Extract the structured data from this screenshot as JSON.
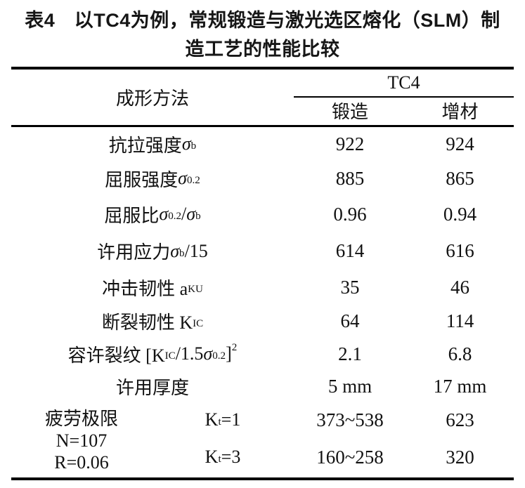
{
  "colors": {
    "background": "#ffffff",
    "text": "#111111",
    "rule": "#000000"
  },
  "title": {
    "line1": "表4　以TC4为例，常规锻造与激光选区熔化（SLM）制",
    "line2": "造工艺的性能比较"
  },
  "table": {
    "header": {
      "method_label": "成形方法",
      "group_label": "TC4",
      "col_forging": "锻造",
      "col_additive": "增材"
    },
    "rows": [
      {
        "label_html": "抗拉强度 <i>σ</i><sub>b</sub>",
        "forging": "922",
        "additive": "924"
      },
      {
        "label_html": "屈服强度 <i>σ</i><sub>0.2</sub>",
        "forging": "885",
        "additive": "865"
      },
      {
        "label_html": "屈服比 <i>σ</i><sub>0.2</sub>/<i>σ</i><sub>b</sub>",
        "forging": "0.96",
        "additive": "0.94"
      },
      {
        "label_html": "许用应力 <i>σ</i><sub>b</sub>/15",
        "forging": "614",
        "additive": "616"
      },
      {
        "label_html": "冲击韧性 a<sub>KU</sub>",
        "forging": "35",
        "additive": "46"
      },
      {
        "label_html": "断裂韧性 K<sub>IC</sub>",
        "forging": "64",
        "additive": "114"
      },
      {
        "label_html": "容许裂纹 [K<sub>IC</sub>/1.5<i>σ</i><sub>0.2</sub>]<sup>2</sup>",
        "forging": "2.1",
        "additive": "6.8"
      },
      {
        "label_html": "许用厚度",
        "forging": "5 mm",
        "additive": "17 mm"
      }
    ],
    "fatigue": {
      "label_lines": [
        "疲劳极限",
        "N=107",
        "R=0.06"
      ],
      "sub_rows": [
        {
          "kt_html": "K<sub>t</sub>=1",
          "forging": "373~538",
          "additive": "623"
        },
        {
          "kt_html": "K<sub>t</sub>=3",
          "forging": "160~258",
          "additive": "320"
        }
      ]
    }
  }
}
